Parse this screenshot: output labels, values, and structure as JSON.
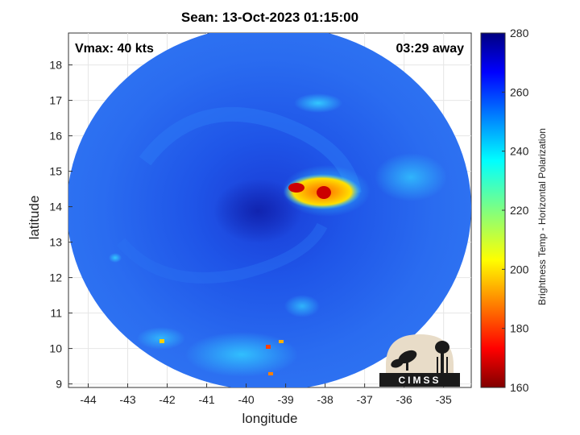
{
  "title": "Sean: 13-Oct-2023 01:15:00",
  "annotations": {
    "vmax": "Vmax: 40 kts",
    "away": "03:29 away"
  },
  "axes": {
    "xlabel": "longitude",
    "ylabel": "latitude",
    "x_ticks": [
      "-44",
      "-43",
      "-42",
      "-41",
      "-40",
      "-39",
      "-38",
      "-37",
      "-36",
      "-35"
    ],
    "x_values": [
      -44,
      -43,
      -42,
      -41,
      -40,
      -39,
      -38,
      -37,
      -36,
      -35
    ],
    "xlim": [
      -44.5,
      -34.3
    ],
    "y_ticks": [
      "9",
      "10",
      "11",
      "12",
      "13",
      "14",
      "15",
      "16",
      "17",
      "18"
    ],
    "y_values": [
      9,
      10,
      11,
      12,
      13,
      14,
      15,
      16,
      17,
      18
    ],
    "ylim": [
      8.9,
      18.9
    ],
    "grid": true
  },
  "colorbar": {
    "label": "Brightness Temp - Horizontal Polarization",
    "ticks": [
      "280",
      "260",
      "240",
      "220",
      "200",
      "180",
      "160"
    ],
    "tick_values": [
      280,
      260,
      240,
      220,
      200,
      180,
      160
    ],
    "range": [
      160,
      280
    ],
    "colormap": "jet"
  },
  "logo": {
    "text": "CIMSS",
    "background": "#e8dcc8",
    "foreground": "#1a1a1a"
  },
  "storm": {
    "center_lon": -39.5,
    "center_lat": 14.1,
    "convection_lon": -38.3,
    "convection_lat": 14.5
  }
}
